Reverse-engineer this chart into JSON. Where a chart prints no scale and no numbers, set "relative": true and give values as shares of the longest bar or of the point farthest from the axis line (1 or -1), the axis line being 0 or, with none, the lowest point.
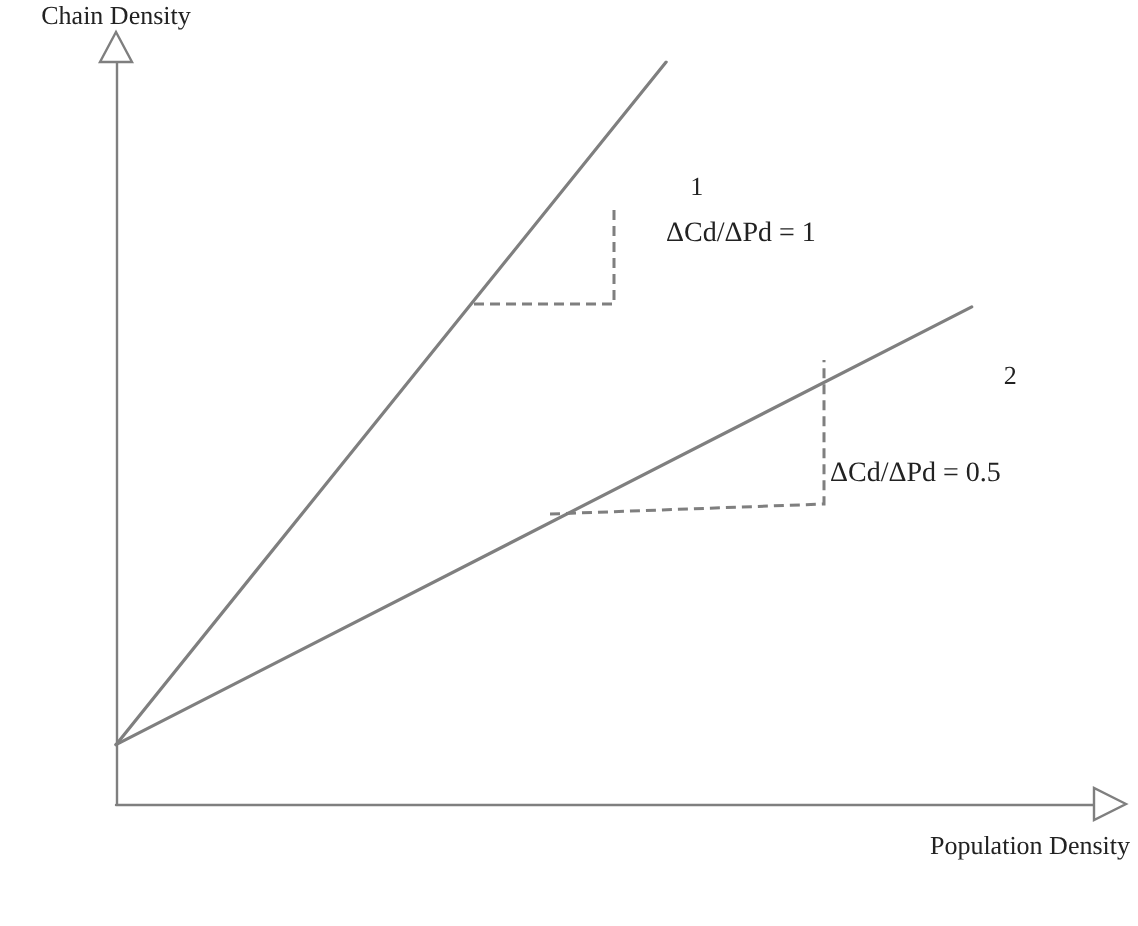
{
  "chart_data": {
    "type": "line",
    "relative": true,
    "xlabel": "Population Density",
    "ylabel": "Chain Density",
    "grid": false,
    "marker": "none",
    "line_style": "solid",
    "categories": [
      null,
      null,
      null,
      null,
      null,
      null,
      null,
      null,
      null,
      null,
      null,
      null,
      null,
      null,
      null,
      null,
      null
    ],
    "series": [
      {
        "name": "1",
        "color": "#7f7f7f",
        "values": [
          0.08,
          null,
          null,
          null,
          null,
          null,
          null,
          null,
          null,
          1,
          null,
          null,
          null,
          null,
          null,
          null,
          null
        ]
      },
      {
        "name": "2",
        "color": "#7f7f7f",
        "values": [
          0.08,
          null,
          null,
          null,
          null,
          null,
          null,
          null,
          null,
          null,
          null,
          null,
          null,
          null,
          0.67,
          null,
          null
        ]
      }
    ],
    "annotations": [
      "ΔCd/ΔPd = 1",
      "ΔCd/ΔPd = 0.5"
    ]
  }
}
